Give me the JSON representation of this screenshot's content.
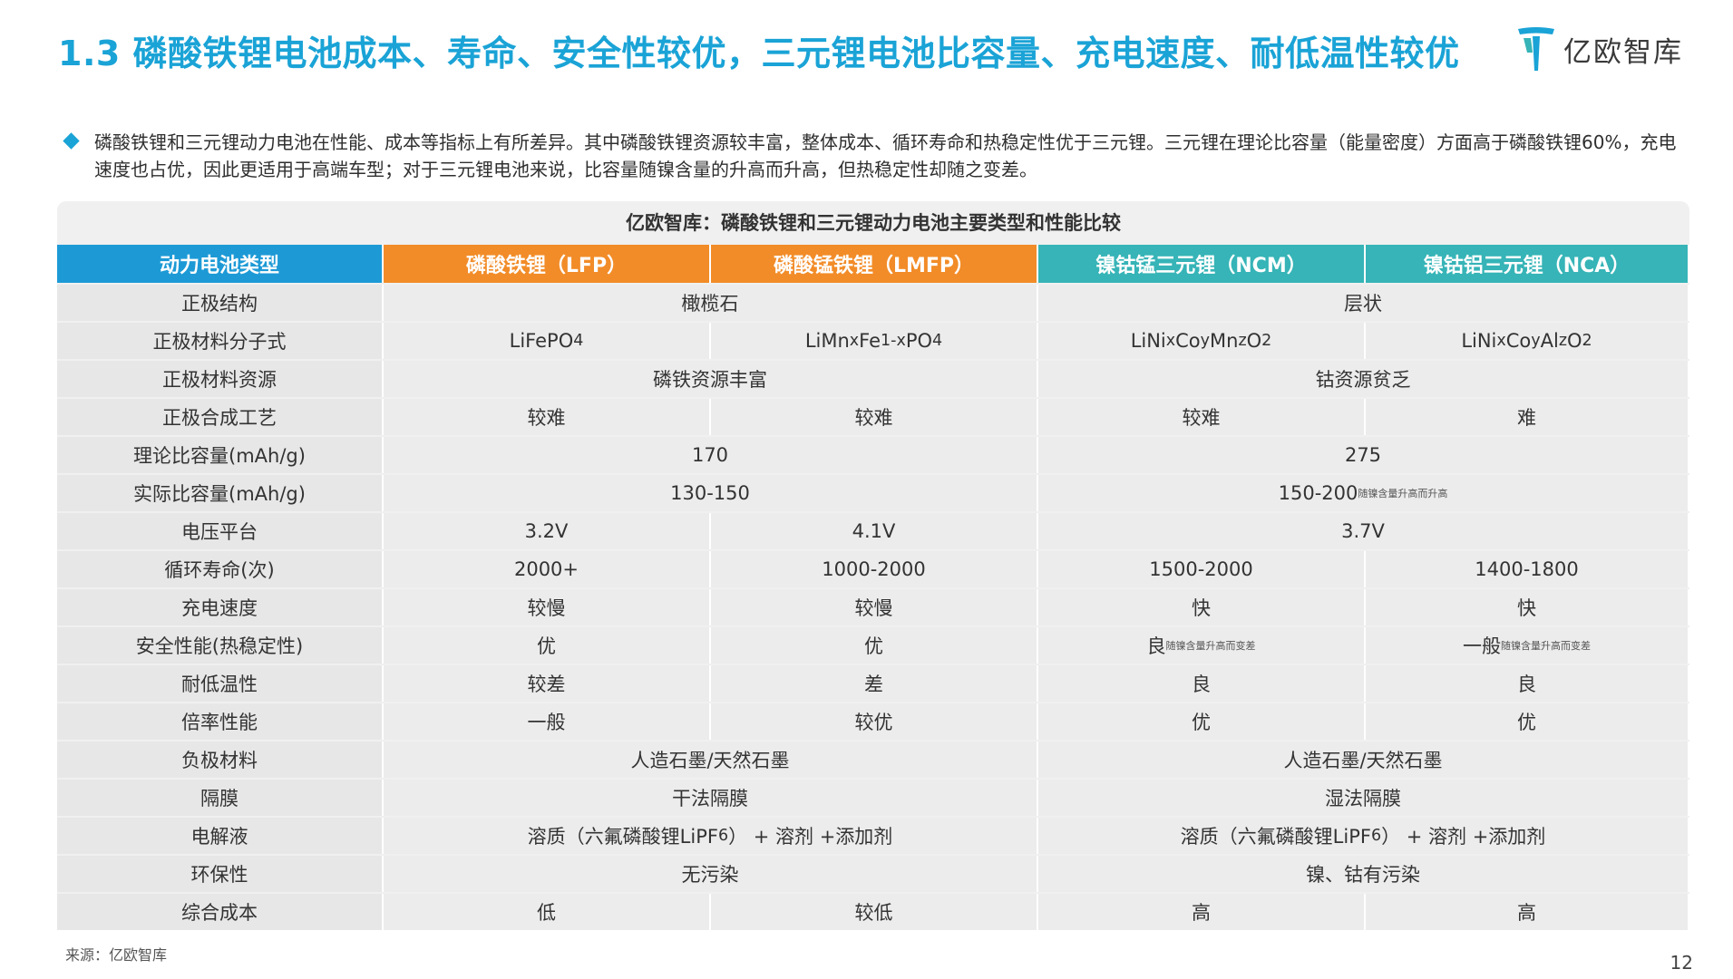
{
  "header": {
    "title": "1.3 磷酸铁锂电池成本、寿命、安全性较优，三元锂电池比容量、充电速度、耐低温性较优",
    "logo_text": "亿欧智库"
  },
  "intro": {
    "text": "磷酸铁锂和三元锂动力电池在性能、成本等指标上有所差异。其中磷酸铁锂资源较丰富，整体成本、循环寿命和热稳定性优于三元锂。三元锂在理论比容量（能量密度）方面高于磷酸铁锂60%，充电速度也占优，因此更适用于高端车型；对于三元锂电池来说，比容量随镍含量的升高而升高，但热稳定性却随之变差。"
  },
  "table": {
    "caption": "亿欧智库：磷酸铁锂和三元锂动力电池主要类型和性能比较",
    "headers": [
      "动力电池类型",
      "磷酸铁锂（LFP）",
      "磷酸锰铁锂（LMFP）",
      "镍钴锰三元锂（NCM）",
      "镍钴铝三元锂（NCA）"
    ],
    "rows": {
      "structure": {
        "label": "正极结构",
        "lfp_lmfp": "橄榄石",
        "ncm_nca": "层状"
      },
      "formula": {
        "label": "正极材料分子式"
      },
      "resource": {
        "label": "正极材料资源",
        "lfp_lmfp": "磷铁资源丰富",
        "ncm_nca": "钴资源贫乏"
      },
      "synthesis": {
        "label": "正极合成工艺",
        "lfp": "较难",
        "lmfp": "较难",
        "ncm": "较难",
        "nca": "难"
      },
      "theory_cap": {
        "label": "理论比容量(mAh/g)",
        "lfp_lmfp": "170",
        "ncm_nca": "275"
      },
      "actual_cap": {
        "label": "实际比容量(mAh/g)",
        "lfp_lmfp": "130-150",
        "ncm_nca": "150-200",
        "ncm_nca_note": "随镍含量升高而升高"
      },
      "voltage": {
        "label": "电压平台",
        "lfp": "3.2V",
        "lmfp": "4.1V",
        "ncm_nca": "3.7V"
      },
      "cycle": {
        "label": "循环寿命(次)",
        "lfp": "2000+",
        "lmfp": "1000-2000",
        "ncm": "1500-2000",
        "nca": "1400-1800"
      },
      "charge": {
        "label": "充电速度",
        "lfp": "较慢",
        "lmfp": "较慢",
        "ncm": "快",
        "nca": "快"
      },
      "safety": {
        "label": "安全性能(热稳定性)",
        "lfp": "优",
        "lmfp": "优",
        "ncm": "良",
        "ncm_note": "随镍含量升高而变差",
        "nca": "一般",
        "nca_note": "随镍含量升高而变差"
      },
      "low_temp": {
        "label": "耐低温性",
        "lfp": "较差",
        "lmfp": "差",
        "ncm": "良",
        "nca": "良"
      },
      "rate": {
        "label": "倍率性能",
        "lfp": "一般",
        "lmfp": "较优",
        "ncm": "优",
        "nca": "优"
      },
      "anode": {
        "label": "负极材料",
        "lfp_lmfp": "人造石墨/天然石墨",
        "ncm_nca": "人造石墨/天然石墨"
      },
      "separator": {
        "label": "隔膜",
        "lfp_lmfp": "干法隔膜",
        "ncm_nca": "湿法隔膜"
      },
      "electrolyte": {
        "label": "电解液"
      },
      "environment": {
        "label": "环保性",
        "lfp_lmfp": "无污染",
        "ncm_nca": "镍、钴有污染"
      },
      "cost": {
        "label": "综合成本",
        "lfp": "低",
        "lmfp": "较低",
        "ncm": "高",
        "nca": "高"
      }
    }
  },
  "footer": {
    "source": "来源：亿欧智库",
    "page": "12"
  },
  "colors": {
    "title": "#1aa3d6",
    "header_type": "#1d9ad6",
    "header_lfp": "#f28c28",
    "header_ncm": "#36b4b7"
  }
}
